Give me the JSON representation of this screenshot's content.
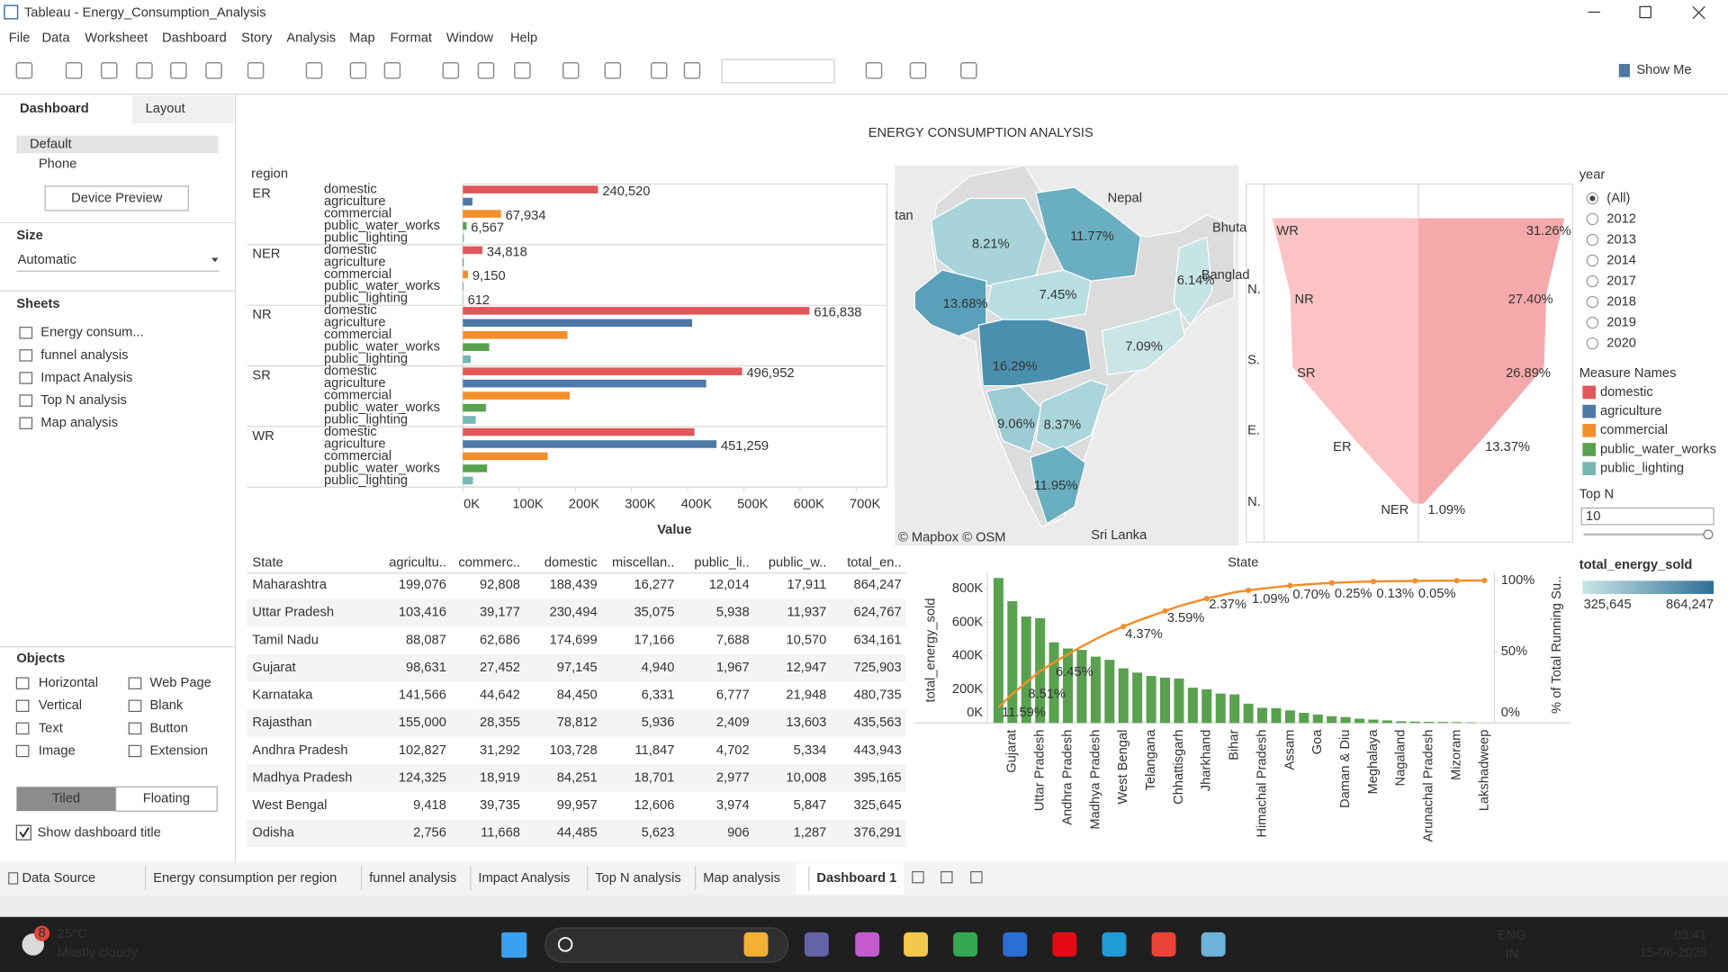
{
  "window": {
    "title": "Tableau - Energy_Consumption_Analysis"
  },
  "menu": [
    "File",
    "Data",
    "Worksheet",
    "Dashboard",
    "Story",
    "Analysis",
    "Map",
    "Format",
    "Window",
    "Help"
  ],
  "toolbar": {
    "show_me": "Show Me"
  },
  "side_panel": {
    "tabs": [
      "Dashboard",
      "Layout"
    ],
    "devices": [
      "Default",
      "Phone"
    ],
    "device_preview": "Device Preview",
    "size_title": "Size",
    "size_value": "Automatic",
    "sheets_title": "Sheets",
    "sheets": [
      "Energy consum...",
      "funnel analysis",
      "Impact Analysis",
      "Top N analysis",
      "Map analysis"
    ],
    "objects_title": "Objects",
    "objects": [
      "Horizontal",
      "Web Page",
      "Vertical",
      "Blank",
      "Text",
      "Button",
      "Image",
      "Extension"
    ],
    "layout_modes": [
      "Tiled",
      "Floating"
    ],
    "show_title": "Show dashboard title"
  },
  "dashboard_title": "ENERGY CONSUMPTION ANALYSIS",
  "chart_data": [
    {
      "type": "bar",
      "group_label": "region",
      "categories": [
        "ER",
        "NER",
        "NR",
        "SR",
        "WR"
      ],
      "series": [
        {
          "name": "domestic",
          "color": "#e15759",
          "values": [
            240520,
            34818,
            616838,
            496952,
            412000
          ],
          "value_labels": [
            "240,520",
            "34,818",
            "616,838",
            "496,952",
            null
          ]
        },
        {
          "name": "agriculture",
          "color": "#4e79a7",
          "values": [
            17000,
            1500,
            408000,
            433000,
            451259
          ],
          "value_labels": [
            null,
            null,
            null,
            null,
            "451,259"
          ]
        },
        {
          "name": "commercial",
          "color": "#f28e2b",
          "values": [
            67934,
            9150,
            186000,
            190000,
            151000
          ],
          "value_labels": [
            "67,934",
            "9,150",
            null,
            null,
            null
          ]
        },
        {
          "name": "public_water_works",
          "color": "#59a14f",
          "values": [
            6567,
            1200,
            47000,
            41000,
            43000
          ],
          "value_labels": [
            "6,567",
            null,
            null,
            null,
            null
          ]
        },
        {
          "name": "public_lighting",
          "color": "#76b7b2",
          "values": [
            2000,
            612,
            14000,
            23000,
            18000
          ],
          "value_labels": [
            null,
            "612",
            null,
            null,
            null
          ]
        }
      ],
      "xlim": [
        0,
        755000
      ],
      "xticks": [
        {
          "value": 0,
          "label": "0K"
        },
        {
          "value": 100000,
          "label": "100K"
        },
        {
          "value": 200000,
          "label": "200K"
        },
        {
          "value": 300000,
          "label": "300K"
        },
        {
          "value": 400000,
          "label": "400K"
        },
        {
          "value": 500000,
          "label": "500K"
        },
        {
          "value": 600000,
          "label": "600K"
        },
        {
          "value": 700000,
          "label": "700K"
        }
      ],
      "x_label": "Value"
    },
    {
      "type": "funnel",
      "categories": [
        "WR",
        "NR",
        "SR",
        "ER",
        "NER"
      ],
      "values": [
        31.26,
        27.4,
        26.89,
        13.37,
        1.09
      ],
      "value_labels": [
        "31.26%",
        "27.40%",
        "26.89%",
        "13.37%",
        "1.09%"
      ],
      "colors": [
        "#fbc3c4",
        "#f5a9ab"
      ],
      "xlim": [
        0,
        33
      ],
      "axis_labels": [
        "N.",
        "S.",
        "E.",
        "N."
      ]
    },
    {
      "type": "pareto",
      "title": "State",
      "categories": [
        null,
        "Gujarat",
        null,
        "Uttar Pradesh",
        null,
        "Andhra Pradesh",
        null,
        "Madhya Pradesh",
        null,
        "West Bengal",
        null,
        "Telangana",
        null,
        "Chhattisgarh",
        null,
        "Jharkhand",
        null,
        "Bihar",
        null,
        "Himachal Pradesh",
        null,
        "Assam",
        null,
        "Goa",
        null,
        "Daman & Diu",
        null,
        "Meghalaya",
        null,
        "Nagaland",
        null,
        "Arunachal Pradesh",
        null,
        "Mizoram",
        null,
        "Lakshadweep"
      ],
      "series": [
        {
          "name": "total_energy_sold",
          "color": "#59a14f",
          "values": [
            864247,
            725903,
            634161,
            624767,
            480735,
            443943,
            435563,
            395165,
            376291,
            325645,
            300000,
            280000,
            270000,
            265000,
            210000,
            200000,
            175000,
            170000,
            115000,
            90000,
            88000,
            75000,
            60000,
            50000,
            40000,
            35000,
            25000,
            20000,
            15000,
            10000,
            8000,
            7000,
            6000,
            5000,
            3000,
            500
          ]
        },
        {
          "name": "% of Total Running Su..",
          "color": "#f28e2b",
          "axis": "y2",
          "values": [
            11.0,
            20.3,
            28.4,
            36.4,
            42.5,
            48.2,
            53.7,
            58.8,
            63.6,
            67.7,
            71.6,
            75.1,
            78.6,
            82.0,
            84.7,
            87.3,
            89.5,
            91.7,
            93.1,
            94.3,
            95.4,
            96.4,
            97.1,
            97.8,
            98.3,
            98.7,
            99.1,
            99.3,
            99.5,
            99.6,
            99.7,
            99.8,
            99.9,
            99.9,
            100,
            100
          ]
        }
      ],
      "ylim": [
        0,
        900000
      ],
      "yticks": [
        {
          "value": 0,
          "label": "0K"
        },
        {
          "value": 200000,
          "label": "200K"
        },
        {
          "value": 400000,
          "label": "400K"
        },
        {
          "value": 600000,
          "label": "600K"
        },
        {
          "value": 800000,
          "label": "800K"
        }
      ],
      "y2lim": [
        0,
        106
      ],
      "y2ticks": [
        {
          "value": 0,
          "label": "0%"
        },
        {
          "value": 50,
          "label": "50%"
        },
        {
          "value": 100,
          "label": "100%"
        }
      ],
      "annotations": [
        "11.59%",
        "8.51%",
        "6.45%",
        "4.37%",
        "3.59%",
        "2.37%",
        "1.09%",
        "0.70%",
        "0.25%",
        "0.13%",
        "0.05%"
      ]
    }
  ],
  "map": {
    "labels": [
      "8.21%",
      "11.77%",
      "13.68%",
      "7.45%",
      "6.14%",
      "16.29%",
      "7.09%",
      "9.06%",
      "8.37%",
      "11.95%"
    ],
    "places": [
      "tan",
      "Nepal",
      "Bhuta",
      "Banglad",
      "Sri Lanka"
    ],
    "attribution": "© Mapbox © OSM"
  },
  "filters": {
    "year_title": "year",
    "years": [
      "(All)",
      "2012",
      "2013",
      "2014",
      "2017",
      "2018",
      "2019",
      "2020"
    ],
    "measure_title": "Measure Names",
    "top_n_title": "Top N",
    "top_n_value": "10",
    "color_title": "total_energy_sold",
    "color_min": "325,645",
    "color_max": "864,247"
  },
  "table": {
    "columns": [
      "State",
      "agricultu..",
      "commerc..",
      "domestic",
      "miscellan..",
      "public_li..",
      "public_w..",
      "total_en.."
    ],
    "rows": [
      [
        "Maharashtra",
        "199,076",
        "92,808",
        "188,439",
        "16,277",
        "12,014",
        "17,911",
        "864,247"
      ],
      [
        "Uttar Pradesh",
        "103,416",
        "39,177",
        "230,494",
        "35,075",
        "5,938",
        "11,937",
        "624,767"
      ],
      [
        "Tamil Nadu",
        "88,087",
        "62,686",
        "174,699",
        "17,166",
        "7,688",
        "10,570",
        "634,161"
      ],
      [
        "Gujarat",
        "98,631",
        "27,452",
        "97,145",
        "4,940",
        "1,967",
        "12,947",
        "725,903"
      ],
      [
        "Karnataka",
        "141,566",
        "44,642",
        "84,450",
        "6,331",
        "6,777",
        "21,948",
        "480,735"
      ],
      [
        "Rajasthan",
        "155,000",
        "28,355",
        "78,812",
        "5,936",
        "2,409",
        "13,603",
        "435,563"
      ],
      [
        "Andhra Pradesh",
        "102,827",
        "31,292",
        "103,728",
        "11,847",
        "4,702",
        "5,334",
        "443,943"
      ],
      [
        "Madhya Pradesh",
        "124,325",
        "18,919",
        "84,251",
        "18,701",
        "2,977",
        "10,008",
        "395,165"
      ],
      [
        "West Bengal",
        "9,418",
        "39,735",
        "99,957",
        "12,606",
        "3,974",
        "5,847",
        "325,645"
      ],
      [
        "Odisha",
        "2,756",
        "11,668",
        "44,485",
        "5,623",
        "906",
        "1,287",
        "376,291"
      ]
    ]
  },
  "sheet_tabs": [
    "Data Source",
    "Energy consumption per region",
    "funnel analysis",
    "Impact Analysis",
    "Top N analysis",
    "Map analysis",
    "Dashboard 1"
  ],
  "taskbar": {
    "badge": "8",
    "temperature": "25°C",
    "weather": "Mostly cloudy",
    "search": "Search",
    "language": "ENG",
    "region": "IN",
    "time": "03:41",
    "date": "15-06-2025"
  }
}
